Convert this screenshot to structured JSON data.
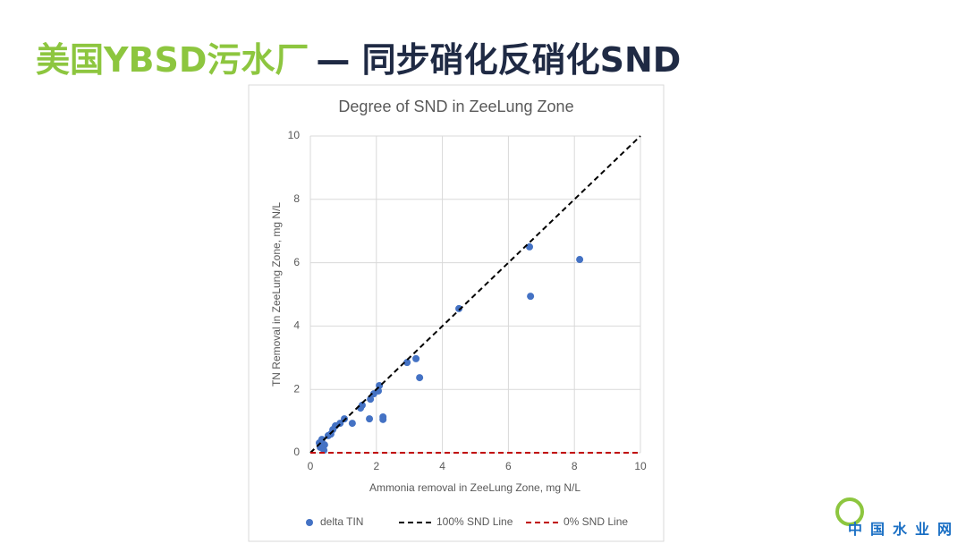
{
  "slide_title": {
    "green": "美国YBSD污水厂",
    "dark": "— 同步硝化反硝化SND"
  },
  "chart_data": {
    "type": "scatter",
    "title": "Degree of SND in ZeeLung Zone",
    "x_label": "Ammonia removal in ZeeLung Zone, mg N/L",
    "y_label": "TN Removal in ZeeLung Zone, mg N/L",
    "xlim": [
      0,
      10
    ],
    "ylim": [
      0,
      10
    ],
    "xticks": [
      0,
      2,
      4,
      6,
      8,
      10
    ],
    "yticks": [
      0,
      2,
      4,
      6,
      8,
      10
    ],
    "grid": true,
    "legend": "bottom",
    "series": [
      {
        "name": "delta TIN",
        "color": "#4472c4",
        "type": "scatter",
        "x": [
          0.27,
          0.3,
          0.41,
          0.35,
          0.43,
          0.54,
          0.62,
          0.68,
          0.76,
          0.9,
          1.03,
          1.27,
          1.52,
          1.57,
          1.79,
          1.82,
          1.92,
          2.06,
          2.09,
          2.2,
          2.2,
          2.93,
          3.2,
          3.31,
          4.5,
          6.64,
          6.67,
          8.16
        ],
        "values": [
          0.31,
          0.17,
          0.08,
          0.42,
          0.25,
          0.54,
          0.59,
          0.73,
          0.85,
          0.93,
          1.07,
          0.93,
          1.41,
          1.5,
          1.07,
          1.69,
          1.86,
          1.95,
          2.12,
          1.13,
          1.05,
          2.85,
          2.97,
          2.37,
          4.55,
          6.5,
          4.94,
          6.1
        ]
      },
      {
        "name": "100% SND Line",
        "color": "#000000",
        "type": "line",
        "dash": true,
        "x": [
          0,
          10
        ],
        "values": [
          0,
          10
        ]
      },
      {
        "name": "0% SND Line",
        "color": "#c00000",
        "type": "line",
        "dash": true,
        "x": [
          0,
          10
        ],
        "values": [
          0,
          0
        ]
      }
    ]
  },
  "watermark": "中国水业网"
}
